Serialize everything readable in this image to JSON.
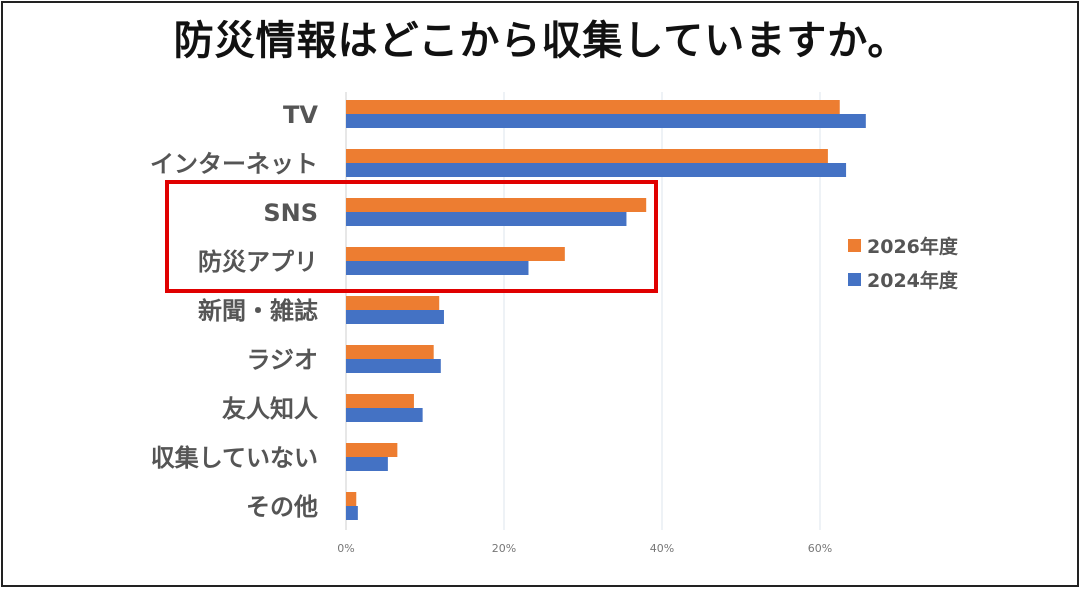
{
  "title": "防災情報はどこから収集していますか。",
  "chart_data": {
    "type": "bar",
    "orientation": "horizontal",
    "categories": [
      "TV",
      "インターネット",
      "SNS",
      "防災アプリ",
      "新聞・雑誌",
      "ラジオ",
      "友人知人",
      "収集していない",
      "その他"
    ],
    "series": [
      {
        "name": "2026年度",
        "color": "#ED7D31",
        "values": [
          62.5,
          61,
          38,
          27.7,
          11.8,
          11.1,
          8.6,
          6.5,
          1.3
        ]
      },
      {
        "name": "2024年度",
        "color": "#4472C4",
        "values": [
          65.8,
          63.3,
          35.5,
          23.1,
          12.4,
          12.0,
          9.7,
          5.3,
          1.5
        ]
      }
    ],
    "xlim": [
      0,
      80
    ],
    "xticks": [
      "0%",
      "20%",
      "40%",
      "60%"
    ],
    "grid": true,
    "legend": "right",
    "highlight": {
      "categories": [
        "SNS",
        "防災アプリ"
      ],
      "color": "#E00000"
    }
  }
}
